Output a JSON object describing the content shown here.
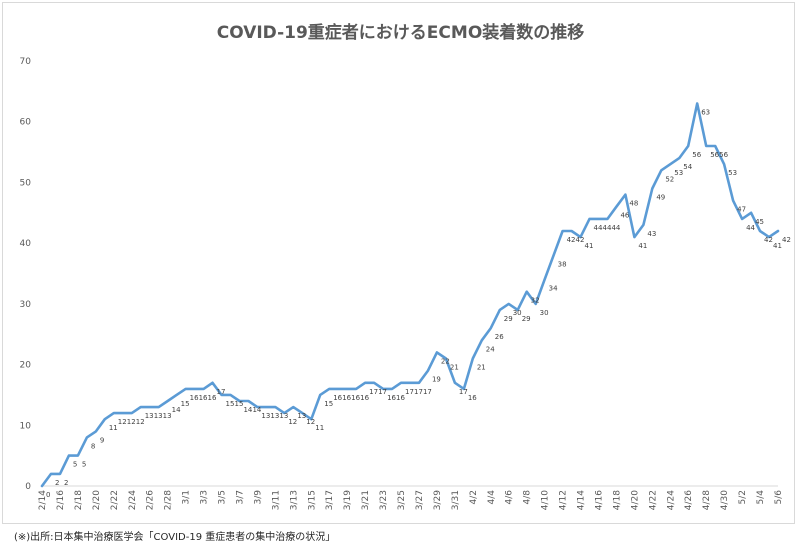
{
  "chart_data": {
    "type": "line",
    "title": "COVID-19重症者におけるECMO装着数の推移",
    "source_note": "(※)出所:日本集中治療医学会「COVID-19 重症患者の集中治療の状況」",
    "xlabel": "",
    "ylabel": "",
    "ylim": [
      0,
      70
    ],
    "yticks": [
      0,
      10,
      20,
      30,
      40,
      50,
      60,
      70
    ],
    "grid": false,
    "legend": "none",
    "line_color": "#5b9bd5",
    "x": [
      "2/14",
      "2/15",
      "2/16",
      "2/17",
      "2/18",
      "2/19",
      "2/20",
      "2/21",
      "2/22",
      "2/23",
      "2/24",
      "2/25",
      "2/26",
      "2/27",
      "2/28",
      "2/29",
      "3/1",
      "3/2",
      "3/3",
      "3/4",
      "3/5",
      "3/6",
      "3/7",
      "3/8",
      "3/9",
      "3/10",
      "3/11",
      "3/12",
      "3/13",
      "3/14",
      "3/15",
      "3/16",
      "3/17",
      "3/18",
      "3/19",
      "3/20",
      "3/21",
      "3/22",
      "3/23",
      "3/24",
      "3/25",
      "3/26",
      "3/27",
      "3/28",
      "3/29",
      "3/30",
      "3/31",
      "4/1",
      "4/2",
      "4/3",
      "4/4",
      "4/5",
      "4/6",
      "4/7",
      "4/8",
      "4/9",
      "4/10",
      "4/11",
      "4/12",
      "4/13",
      "4/14",
      "4/15",
      "4/16",
      "4/17",
      "4/18",
      "4/19",
      "4/20",
      "4/21",
      "4/22",
      "4/23",
      "4/24",
      "4/25",
      "4/26",
      "4/27",
      "4/28",
      "4/29",
      "4/30",
      "5/1",
      "5/2",
      "5/3",
      "5/4",
      "5/5",
      "5/6"
    ],
    "xtick_labels": [
      "2/14",
      "2/16",
      "2/18",
      "2/20",
      "2/22",
      "2/24",
      "2/26",
      "2/28",
      "3/1",
      "3/3",
      "3/5",
      "3/7",
      "3/9",
      "3/11",
      "3/13",
      "3/15",
      "3/17",
      "3/19",
      "3/21",
      "3/23",
      "3/25",
      "3/27",
      "3/29",
      "3/31",
      "4/2",
      "4/4",
      "4/6",
      "4/8",
      "4/10",
      "4/12",
      "4/14",
      "4/16",
      "4/18",
      "4/20",
      "4/22",
      "4/24",
      "4/26",
      "4/28",
      "4/30",
      "5/2",
      "5/4",
      "5/6"
    ],
    "values": [
      0,
      2,
      2,
      5,
      5,
      8,
      9,
      11,
      12,
      12,
      12,
      13,
      13,
      13,
      14,
      15,
      16,
      16,
      16,
      17,
      15,
      15,
      14,
      14,
      13,
      13,
      13,
      12,
      13,
      12,
      11,
      15,
      16,
      16,
      16,
      16,
      17,
      17,
      16,
      16,
      17,
      17,
      17,
      19,
      22,
      21,
      17,
      16,
      21,
      24,
      26,
      29,
      30,
      29,
      32,
      30,
      34,
      38,
      42,
      42,
      41,
      44,
      44,
      44,
      46,
      48,
      41,
      43,
      49,
      52,
      53,
      54,
      56,
      63,
      56,
      56,
      53,
      47,
      44,
      45,
      42,
      41,
      42
    ]
  }
}
